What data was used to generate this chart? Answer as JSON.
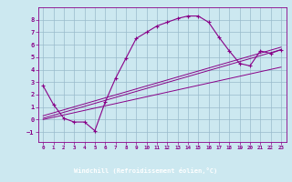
{
  "xlabel": "Windchill (Refroidissement éolien,°C)",
  "xlim": [
    -0.5,
    23.5
  ],
  "ylim": [
    -1.8,
    9.0
  ],
  "xticks": [
    0,
    1,
    2,
    3,
    4,
    5,
    6,
    7,
    8,
    9,
    10,
    11,
    12,
    13,
    14,
    15,
    16,
    17,
    18,
    19,
    20,
    21,
    22,
    23
  ],
  "yticks": [
    -1,
    0,
    1,
    2,
    3,
    4,
    5,
    6,
    7,
    8
  ],
  "bg_color": "#cce8f0",
  "label_bg": "#6633aa",
  "line_color": "#880088",
  "grid_color": "#99bbcc",
  "curve1_x": [
    0,
    1,
    2,
    3,
    4,
    5,
    6,
    7,
    8,
    9,
    10,
    11,
    12,
    13,
    14,
    15,
    16,
    17,
    18,
    19,
    20,
    21,
    22,
    23
  ],
  "curve1_y": [
    2.7,
    1.2,
    0.1,
    -0.2,
    -0.2,
    -0.9,
    1.4,
    3.3,
    4.9,
    6.5,
    7.0,
    7.5,
    7.8,
    8.1,
    8.3,
    8.3,
    7.8,
    6.6,
    5.5,
    4.5,
    4.3,
    5.5,
    5.3,
    5.6
  ],
  "line1_x": [
    0,
    23
  ],
  "line1_y": [
    0.1,
    5.6
  ],
  "line2_x": [
    0,
    23
  ],
  "line2_y": [
    0.3,
    5.8
  ],
  "line3_x": [
    0,
    23
  ],
  "line3_y": [
    0.0,
    4.2
  ]
}
